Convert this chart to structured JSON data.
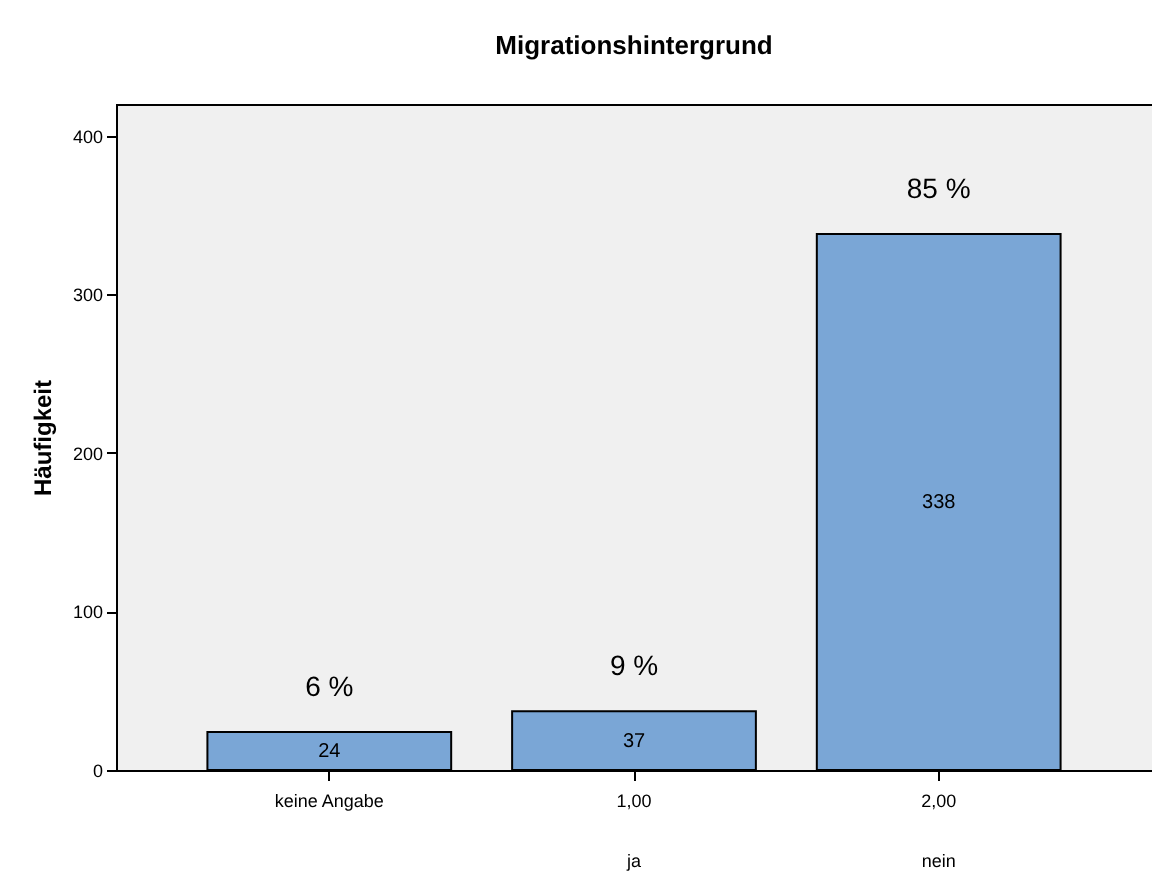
{
  "chart_data": {
    "type": "bar",
    "title": "Migrationshintergrund",
    "ylabel": "Häufigkeit",
    "categories": [
      "keine Angabe",
      "1,00\nja",
      "2,00\nnein"
    ],
    "values": [
      24,
      37,
      338
    ],
    "color": "#7aa6d6",
    "ylim": [
      0,
      420
    ],
    "yticks": [
      0,
      100,
      200,
      300,
      400
    ],
    "grid": false,
    "data_labels": true,
    "annotations": [
      {
        "text": "6 %",
        "x": "keine Angabe",
        "y": 24
      },
      {
        "text": "9 %",
        "x": "1,00\nja",
        "y": 37
      },
      {
        "text": "85 %",
        "x": "2,00\nnein",
        "y": 338
      }
    ]
  }
}
